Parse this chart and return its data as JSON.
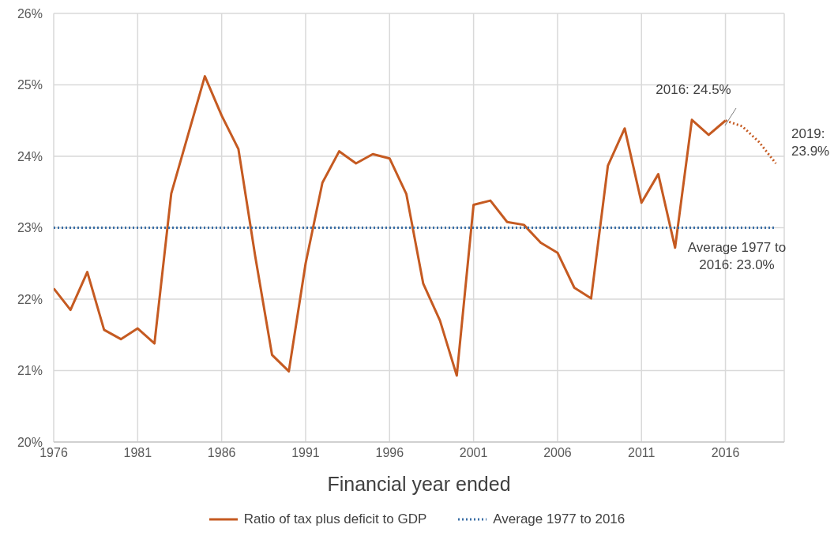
{
  "chart_data": {
    "type": "line",
    "xlabel": "Financial year ended",
    "xlim": [
      1976,
      2019.5
    ],
    "xticks": [
      1976,
      1981,
      1986,
      1991,
      1996,
      2001,
      2006,
      2011,
      2016
    ],
    "ylim": [
      20,
      26
    ],
    "yticks": [
      {
        "value": 20,
        "label": "20%"
      },
      {
        "value": 21,
        "label": "21%"
      },
      {
        "value": 22,
        "label": "22%"
      },
      {
        "value": 23,
        "label": "23%"
      },
      {
        "value": 24,
        "label": "24%"
      },
      {
        "value": 25,
        "label": "25%"
      },
      {
        "value": 26,
        "label": "26%"
      }
    ],
    "grid": true,
    "legend": "bottom",
    "marker": "none",
    "series": [
      {
        "name": "Ratio of tax plus deficit to GDP",
        "color": "#c55a21",
        "line_style": "solid",
        "x": [
          1976,
          1977,
          1978,
          1979,
          1980,
          1981,
          1982,
          1983,
          1984,
          1985,
          1986,
          1987,
          1988,
          1989,
          1990,
          1991,
          1992,
          1993,
          1994,
          1995,
          1996,
          1997,
          1998,
          1999,
          2000,
          2001,
          2002,
          2003,
          2004,
          2005,
          2006,
          2007,
          2008,
          2009,
          2010,
          2011,
          2012,
          2013,
          2014,
          2015,
          2016
        ],
        "values": [
          22.15,
          21.85,
          22.38,
          21.57,
          21.44,
          21.59,
          21.38,
          23.48,
          24.3,
          25.12,
          24.57,
          24.1,
          22.6,
          21.22,
          20.99,
          22.5,
          23.63,
          24.07,
          23.9,
          24.03,
          23.97,
          23.47,
          22.22,
          21.7,
          20.93,
          23.32,
          23.38,
          23.08,
          23.04,
          22.79,
          22.65,
          22.16,
          22.01,
          23.87,
          24.39,
          23.35,
          23.75,
          22.72,
          24.51,
          24.3,
          24.5
        ]
      },
      {
        "color": "#c55a21",
        "line_style": "dotted",
        "x": [
          2016,
          2017,
          2018,
          2019
        ],
        "values": [
          24.5,
          24.42,
          24.2,
          23.9
        ]
      },
      {
        "name": "Average 1977 to 2016",
        "color": "#3a6ea5",
        "line_style": "dotted",
        "x": [
          1976,
          2019
        ],
        "values": [
          23.0,
          23.0
        ]
      }
    ],
    "annotations": [
      "2016: 24.5%",
      "2019: 23.9%",
      "Average 1977 to 2016: 23.0%"
    ]
  }
}
